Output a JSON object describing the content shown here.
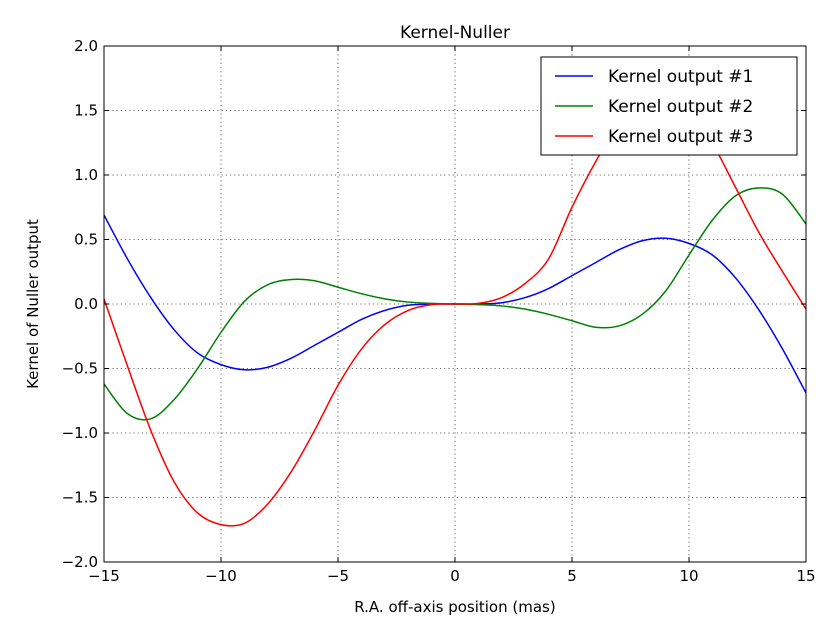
{
  "chart_data": {
    "type": "line",
    "title": "Kernel-Nuller",
    "xlabel": "R.A. off-axis position (mas)",
    "ylabel": "Kernel of Nuller output",
    "xlim": [
      -15,
      15
    ],
    "ylim": [
      -2.0,
      2.0
    ],
    "xticks": [
      -15,
      -10,
      -5,
      0,
      5,
      10,
      15
    ],
    "xtick_labels": [
      "−15",
      "−10",
      "−5",
      "0",
      "5",
      "10",
      "15"
    ],
    "yticks": [
      -2.0,
      -1.5,
      -1.0,
      -0.5,
      0.0,
      0.5,
      1.0,
      1.5,
      2.0
    ],
    "ytick_labels": [
      "−2.0",
      "−1.5",
      "−1.0",
      "−0.5",
      "0.0",
      "0.5",
      "1.0",
      "1.5",
      "2.0"
    ],
    "grid": true,
    "legend_position": "top-right",
    "x": [
      -15,
      -14,
      -13,
      -12,
      -11,
      -10,
      -9,
      -8,
      -7,
      -6,
      -5,
      -4,
      -3,
      -2,
      -1,
      0,
      1,
      2,
      3,
      4,
      5,
      6,
      7,
      8,
      9,
      10,
      11,
      12,
      13,
      14,
      15
    ],
    "series": [
      {
        "name": "Kernel output #1",
        "color": "#0000ff",
        "values": [
          0.69,
          0.35,
          0.05,
          -0.2,
          -0.38,
          -0.47,
          -0.51,
          -0.49,
          -0.42,
          -0.32,
          -0.22,
          -0.12,
          -0.05,
          -0.01,
          0.0,
          0.0,
          0.0,
          0.01,
          0.05,
          0.12,
          0.22,
          0.32,
          0.42,
          0.49,
          0.51,
          0.47,
          0.38,
          0.2,
          -0.05,
          -0.35,
          -0.69
        ]
      },
      {
        "name": "Kernel output #2",
        "color": "#008000",
        "values": [
          -0.62,
          -0.85,
          -0.89,
          -0.74,
          -0.5,
          -0.22,
          0.02,
          0.15,
          0.19,
          0.18,
          0.13,
          0.08,
          0.04,
          0.015,
          0.005,
          0.0,
          -0.005,
          -0.015,
          -0.04,
          -0.08,
          -0.13,
          -0.18,
          -0.17,
          -0.08,
          0.1,
          0.38,
          0.65,
          0.84,
          0.9,
          0.85,
          0.62
        ]
      },
      {
        "name": "Kernel output #3",
        "color": "#ff0000",
        "values": [
          0.04,
          -0.48,
          -0.98,
          -1.38,
          -1.62,
          -1.71,
          -1.7,
          -1.55,
          -1.3,
          -0.98,
          -0.63,
          -0.35,
          -0.16,
          -0.05,
          -0.005,
          0.0,
          0.005,
          0.05,
          0.16,
          0.35,
          0.75,
          1.1,
          1.4,
          1.62,
          1.7,
          1.55,
          1.25,
          0.9,
          0.55,
          0.25,
          -0.04
        ]
      }
    ]
  }
}
